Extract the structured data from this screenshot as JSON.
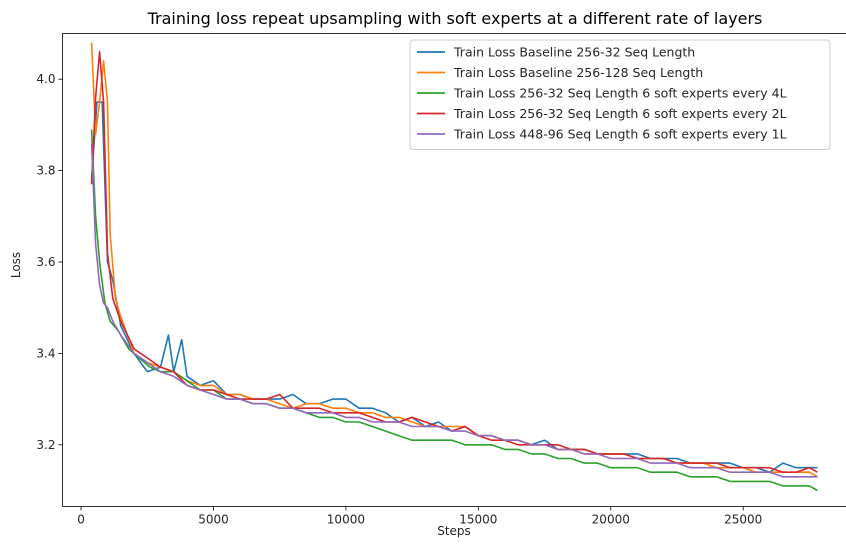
{
  "chart_data": {
    "type": "line",
    "title": "Training loss repeat upsampling with soft experts at a different rate of layers",
    "xlabel": "Steps",
    "ylabel": "Loss",
    "xlim": [
      -700,
      28900
    ],
    "ylim": [
      3.065,
      4.1
    ],
    "xticks": [
      0,
      5000,
      10000,
      15000,
      20000,
      25000
    ],
    "xtick_labels": [
      "0",
      "5000",
      "10000",
      "15000",
      "20000",
      "25000"
    ],
    "yticks": [
      3.2,
      3.4,
      3.6,
      3.8,
      4.0
    ],
    "ytick_labels": [
      "3.2",
      "3.4",
      "3.6",
      "3.8",
      "4.0"
    ],
    "grid": false,
    "legend_position": "top-right",
    "series": [
      {
        "name": "Train Loss Baseline 256-32 Seq Length",
        "color": "#1f77b4",
        "points": [
          [
            400,
            3.78
          ],
          [
            600,
            3.95
          ],
          [
            800,
            3.95
          ],
          [
            1000,
            3.6
          ],
          [
            1200,
            3.56
          ],
          [
            1500,
            3.46
          ],
          [
            2000,
            3.4
          ],
          [
            2500,
            3.36
          ],
          [
            3000,
            3.37
          ],
          [
            3300,
            3.44
          ],
          [
            3500,
            3.36
          ],
          [
            3800,
            3.43
          ],
          [
            4000,
            3.35
          ],
          [
            4500,
            3.33
          ],
          [
            5000,
            3.34
          ],
          [
            5500,
            3.31
          ],
          [
            6000,
            3.31
          ],
          [
            6500,
            3.3
          ],
          [
            7000,
            3.3
          ],
          [
            7500,
            3.3
          ],
          [
            8000,
            3.31
          ],
          [
            8500,
            3.29
          ],
          [
            9000,
            3.29
          ],
          [
            9500,
            3.3
          ],
          [
            10000,
            3.3
          ],
          [
            10500,
            3.28
          ],
          [
            11000,
            3.28
          ],
          [
            11500,
            3.27
          ],
          [
            12000,
            3.25
          ],
          [
            12500,
            3.26
          ],
          [
            13000,
            3.24
          ],
          [
            13500,
            3.25
          ],
          [
            14000,
            3.23
          ],
          [
            14500,
            3.24
          ],
          [
            15000,
            3.22
          ],
          [
            15500,
            3.22
          ],
          [
            16000,
            3.21
          ],
          [
            16500,
            3.21
          ],
          [
            17000,
            3.2
          ],
          [
            17500,
            3.21
          ],
          [
            18000,
            3.19
          ],
          [
            18500,
            3.19
          ],
          [
            19000,
            3.19
          ],
          [
            19500,
            3.18
          ],
          [
            20000,
            3.18
          ],
          [
            20500,
            3.18
          ],
          [
            21000,
            3.18
          ],
          [
            21500,
            3.17
          ],
          [
            22000,
            3.17
          ],
          [
            22500,
            3.17
          ],
          [
            23000,
            3.16
          ],
          [
            23500,
            3.16
          ],
          [
            24000,
            3.16
          ],
          [
            24500,
            3.16
          ],
          [
            25000,
            3.15
          ],
          [
            25500,
            3.15
          ],
          [
            26000,
            3.14
          ],
          [
            26500,
            3.16
          ],
          [
            27000,
            3.15
          ],
          [
            27500,
            3.15
          ],
          [
            27800,
            3.15
          ]
        ]
      },
      {
        "name": "Train Loss Baseline 256-128 Seq Length",
        "color": "#ff7f0e",
        "points": [
          [
            400,
            4.08
          ],
          [
            550,
            3.88
          ],
          [
            700,
            3.95
          ],
          [
            850,
            4.04
          ],
          [
            1000,
            3.95
          ],
          [
            1100,
            3.66
          ],
          [
            1300,
            3.52
          ],
          [
            1500,
            3.48
          ],
          [
            2000,
            3.4
          ],
          [
            2500,
            3.38
          ],
          [
            3000,
            3.37
          ],
          [
            3500,
            3.36
          ],
          [
            4000,
            3.34
          ],
          [
            4500,
            3.33
          ],
          [
            5000,
            3.33
          ],
          [
            5500,
            3.31
          ],
          [
            6000,
            3.31
          ],
          [
            6500,
            3.3
          ],
          [
            7000,
            3.3
          ],
          [
            7500,
            3.29
          ],
          [
            8000,
            3.28
          ],
          [
            8500,
            3.29
          ],
          [
            9000,
            3.29
          ],
          [
            9500,
            3.28
          ],
          [
            10000,
            3.28
          ],
          [
            10500,
            3.27
          ],
          [
            11000,
            3.27
          ],
          [
            11500,
            3.26
          ],
          [
            12000,
            3.26
          ],
          [
            12500,
            3.25
          ],
          [
            13000,
            3.24
          ],
          [
            13500,
            3.24
          ],
          [
            14000,
            3.24
          ],
          [
            14500,
            3.24
          ],
          [
            15000,
            3.22
          ],
          [
            15500,
            3.22
          ],
          [
            16000,
            3.21
          ],
          [
            16500,
            3.21
          ],
          [
            17000,
            3.2
          ],
          [
            17500,
            3.2
          ],
          [
            18000,
            3.19
          ],
          [
            18500,
            3.19
          ],
          [
            19000,
            3.18
          ],
          [
            19500,
            3.18
          ],
          [
            20000,
            3.18
          ],
          [
            20500,
            3.18
          ],
          [
            21000,
            3.17
          ],
          [
            21500,
            3.17
          ],
          [
            22000,
            3.17
          ],
          [
            22500,
            3.16
          ],
          [
            23000,
            3.16
          ],
          [
            23500,
            3.16
          ],
          [
            24000,
            3.15
          ],
          [
            24500,
            3.15
          ],
          [
            25000,
            3.15
          ],
          [
            25500,
            3.14
          ],
          [
            26000,
            3.14
          ],
          [
            26500,
            3.14
          ],
          [
            27000,
            3.14
          ],
          [
            27500,
            3.14
          ],
          [
            27800,
            3.13
          ]
        ]
      },
      {
        "name": "Train Loss 256-32 Seq Length 6 soft experts every 4L",
        "color": "#2ca02c",
        "points": [
          [
            400,
            3.89
          ],
          [
            550,
            3.7
          ],
          [
            700,
            3.6
          ],
          [
            900,
            3.51
          ],
          [
            1100,
            3.47
          ],
          [
            1400,
            3.45
          ],
          [
            1800,
            3.41
          ],
          [
            2200,
            3.39
          ],
          [
            2600,
            3.37
          ],
          [
            3000,
            3.36
          ],
          [
            3500,
            3.36
          ],
          [
            4000,
            3.34
          ],
          [
            4500,
            3.32
          ],
          [
            5000,
            3.32
          ],
          [
            5500,
            3.3
          ],
          [
            6000,
            3.3
          ],
          [
            6500,
            3.29
          ],
          [
            7000,
            3.29
          ],
          [
            7500,
            3.28
          ],
          [
            8000,
            3.28
          ],
          [
            8500,
            3.27
          ],
          [
            9000,
            3.26
          ],
          [
            9500,
            3.26
          ],
          [
            10000,
            3.25
          ],
          [
            10500,
            3.25
          ],
          [
            11000,
            3.24
          ],
          [
            11500,
            3.23
          ],
          [
            12000,
            3.22
          ],
          [
            12500,
            3.21
          ],
          [
            13000,
            3.21
          ],
          [
            13500,
            3.21
          ],
          [
            14000,
            3.21
          ],
          [
            14500,
            3.2
          ],
          [
            15000,
            3.2
          ],
          [
            15500,
            3.2
          ],
          [
            16000,
            3.19
          ],
          [
            16500,
            3.19
          ],
          [
            17000,
            3.18
          ],
          [
            17500,
            3.18
          ],
          [
            18000,
            3.17
          ],
          [
            18500,
            3.17
          ],
          [
            19000,
            3.16
          ],
          [
            19500,
            3.16
          ],
          [
            20000,
            3.15
          ],
          [
            20500,
            3.15
          ],
          [
            21000,
            3.15
          ],
          [
            21500,
            3.14
          ],
          [
            22000,
            3.14
          ],
          [
            22500,
            3.14
          ],
          [
            23000,
            3.13
          ],
          [
            23500,
            3.13
          ],
          [
            24000,
            3.13
          ],
          [
            24500,
            3.12
          ],
          [
            25000,
            3.12
          ],
          [
            25500,
            3.12
          ],
          [
            26000,
            3.12
          ],
          [
            26500,
            3.11
          ],
          [
            27000,
            3.11
          ],
          [
            27500,
            3.11
          ],
          [
            27800,
            3.1
          ]
        ]
      },
      {
        "name": "Train Loss 256-32 Seq Length 6 soft experts every 2L",
        "color": "#d62728",
        "points": [
          [
            400,
            3.77
          ],
          [
            550,
            3.96
          ],
          [
            700,
            4.06
          ],
          [
            850,
            3.95
          ],
          [
            1000,
            3.62
          ],
          [
            1200,
            3.52
          ],
          [
            1500,
            3.47
          ],
          [
            2000,
            3.41
          ],
          [
            2500,
            3.39
          ],
          [
            3000,
            3.37
          ],
          [
            3500,
            3.36
          ],
          [
            4000,
            3.33
          ],
          [
            4500,
            3.32
          ],
          [
            5000,
            3.32
          ],
          [
            5500,
            3.31
          ],
          [
            6000,
            3.3
          ],
          [
            6500,
            3.3
          ],
          [
            7000,
            3.3
          ],
          [
            7500,
            3.31
          ],
          [
            8000,
            3.28
          ],
          [
            8500,
            3.28
          ],
          [
            9000,
            3.28
          ],
          [
            9500,
            3.27
          ],
          [
            10000,
            3.27
          ],
          [
            10500,
            3.27
          ],
          [
            11000,
            3.26
          ],
          [
            11500,
            3.25
          ],
          [
            12000,
            3.25
          ],
          [
            12500,
            3.26
          ],
          [
            13000,
            3.25
          ],
          [
            13500,
            3.24
          ],
          [
            14000,
            3.23
          ],
          [
            14500,
            3.24
          ],
          [
            15000,
            3.22
          ],
          [
            15500,
            3.21
          ],
          [
            16000,
            3.21
          ],
          [
            16500,
            3.2
          ],
          [
            17000,
            3.2
          ],
          [
            17500,
            3.2
          ],
          [
            18000,
            3.2
          ],
          [
            18500,
            3.19
          ],
          [
            19000,
            3.19
          ],
          [
            19500,
            3.18
          ],
          [
            20000,
            3.18
          ],
          [
            20500,
            3.18
          ],
          [
            21000,
            3.17
          ],
          [
            21500,
            3.17
          ],
          [
            22000,
            3.17
          ],
          [
            22500,
            3.16
          ],
          [
            23000,
            3.16
          ],
          [
            23500,
            3.16
          ],
          [
            24000,
            3.16
          ],
          [
            24500,
            3.15
          ],
          [
            25000,
            3.15
          ],
          [
            25500,
            3.15
          ],
          [
            26000,
            3.15
          ],
          [
            26500,
            3.14
          ],
          [
            27000,
            3.14
          ],
          [
            27500,
            3.15
          ],
          [
            27800,
            3.14
          ]
        ]
      },
      {
        "name": "Train Loss 448-96 Seq Length 6 soft experts every 1L",
        "color": "#9467bd",
        "points": [
          [
            400,
            3.86
          ],
          [
            550,
            3.64
          ],
          [
            700,
            3.55
          ],
          [
            850,
            3.51
          ],
          [
            1000,
            3.5
          ],
          [
            1200,
            3.47
          ],
          [
            1500,
            3.44
          ],
          [
            2000,
            3.4
          ],
          [
            2500,
            3.38
          ],
          [
            3000,
            3.36
          ],
          [
            3500,
            3.35
          ],
          [
            4000,
            3.33
          ],
          [
            4500,
            3.32
          ],
          [
            5000,
            3.31
          ],
          [
            5500,
            3.3
          ],
          [
            6000,
            3.3
          ],
          [
            6500,
            3.29
          ],
          [
            7000,
            3.29
          ],
          [
            7500,
            3.28
          ],
          [
            8000,
            3.28
          ],
          [
            8500,
            3.27
          ],
          [
            9000,
            3.27
          ],
          [
            9500,
            3.27
          ],
          [
            10000,
            3.26
          ],
          [
            10500,
            3.26
          ],
          [
            11000,
            3.25
          ],
          [
            11500,
            3.25
          ],
          [
            12000,
            3.25
          ],
          [
            12500,
            3.24
          ],
          [
            13000,
            3.24
          ],
          [
            13500,
            3.24
          ],
          [
            14000,
            3.23
          ],
          [
            14500,
            3.23
          ],
          [
            15000,
            3.22
          ],
          [
            15500,
            3.22
          ],
          [
            16000,
            3.21
          ],
          [
            16500,
            3.21
          ],
          [
            17000,
            3.2
          ],
          [
            17500,
            3.2
          ],
          [
            18000,
            3.19
          ],
          [
            18500,
            3.19
          ],
          [
            19000,
            3.18
          ],
          [
            19500,
            3.18
          ],
          [
            20000,
            3.17
          ],
          [
            20500,
            3.17
          ],
          [
            21000,
            3.17
          ],
          [
            21500,
            3.16
          ],
          [
            22000,
            3.16
          ],
          [
            22500,
            3.16
          ],
          [
            23000,
            3.15
          ],
          [
            23500,
            3.15
          ],
          [
            24000,
            3.15
          ],
          [
            24500,
            3.14
          ],
          [
            25000,
            3.14
          ],
          [
            25500,
            3.14
          ],
          [
            26000,
            3.14
          ],
          [
            26500,
            3.13
          ],
          [
            27000,
            3.13
          ],
          [
            27500,
            3.13
          ],
          [
            27800,
            3.13
          ]
        ]
      }
    ]
  }
}
